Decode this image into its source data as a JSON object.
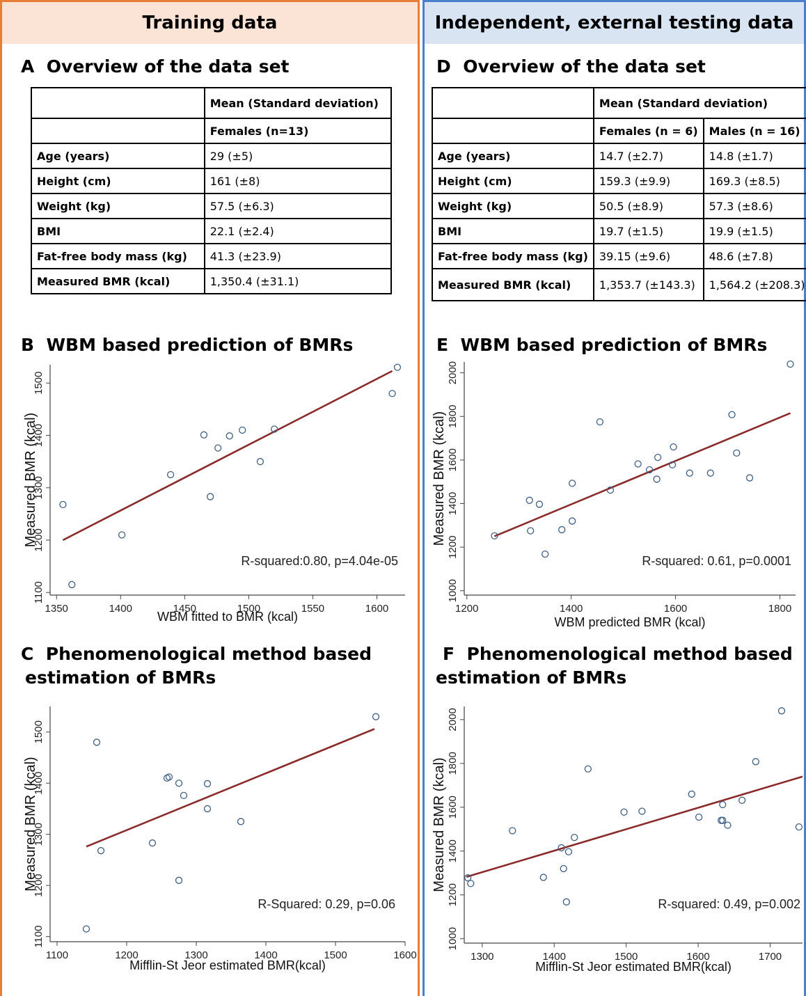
{
  "left": {
    "banner": "Training data",
    "sectionA": {
      "letter": "A",
      "title": "Overview of the data set"
    },
    "tableA": {
      "header": "Mean (Standard deviation)",
      "subheader": "Females (n=13)",
      "rows": [
        {
          "label": "Age (years)",
          "value": "29 (±5)"
        },
        {
          "label": "Height (cm)",
          "value": "161 (±8)"
        },
        {
          "label": "Weight (kg)",
          "value": "57.5 (±6.3)"
        },
        {
          "label": "BMI",
          "value": "22.1 (±2.4)"
        },
        {
          "label": "Fat-free body mass (kg)",
          "value": "41.3 (±23.9)"
        },
        {
          "label": "Measured BMR (kcal)",
          "value": "1,350.4 (±31.1)"
        }
      ]
    },
    "sectionB": {
      "letter": "B",
      "title": "WBM based prediction of BMRs"
    },
    "sectionC": {
      "letter": "C",
      "title_line1": "Phenomenological method based",
      "title_line2": "estimation of BMRs"
    }
  },
  "right": {
    "banner": "Independent, external testing data",
    "sectionD": {
      "letter": "D",
      "title": "Overview of the data set"
    },
    "tableD": {
      "header": "Mean (Standard deviation)",
      "col1": "Females (n = 6)",
      "col2": "Males (n = 16)",
      "rows": [
        {
          "label": "Age (years)",
          "female": "14.7 (±2.7)",
          "male": "14.8 (±1.7)"
        },
        {
          "label": "Height (cm)",
          "female": "159.3 (±9.9)",
          "male": "169.3 (±8.5)"
        },
        {
          "label": "Weight (kg)",
          "female": "50.5 (±8.9)",
          "male": "57.3 (±8.6)"
        },
        {
          "label": "BMI",
          "female": "19.7 (±1.5)",
          "male": "19.9 (±1.5)"
        },
        {
          "label": "Fat-free body mass (kg)",
          "female": "39.15 (±9.6)",
          "male": "48.6 (±7.8)"
        },
        {
          "label": "Measured BMR (kcal)",
          "female": "1,353.7 (±143.3)",
          "male": "1,564.2 (±208.3)"
        }
      ]
    },
    "sectionE": {
      "letter": "E",
      "title": "WBM based prediction of BMRs"
    },
    "sectionF": {
      "letter": "F",
      "title_line1": "Phenomenological method based",
      "title_line2": "estimation of BMRs"
    }
  },
  "colors": {
    "training_border": "#e67e33",
    "testing_border": "#4a7fd0",
    "training_banner": "#fbe3d5",
    "testing_banner": "#d9e4f3",
    "fit_line": "#8b2a2a",
    "marker": "#3f5f85"
  },
  "chart_data": [
    {
      "id": "B",
      "type": "scatter",
      "xlabel": "WBM fitted to BMR (kcal)",
      "ylabel": "Measured BMR (kcal)",
      "xlim": [
        1345,
        1622
      ],
      "ylim": [
        1095,
        1535
      ],
      "xticks": [
        1350,
        1400,
        1450,
        1500,
        1550,
        1600
      ],
      "yticks": [
        1100,
        1200,
        1300,
        1400,
        1500
      ],
      "x": [
        1355,
        1362,
        1401,
        1439,
        1465,
        1470,
        1476,
        1485,
        1495,
        1509,
        1520,
        1612,
        1616
      ],
      "y": [
        1268,
        1115,
        1210,
        1325,
        1401,
        1283,
        1376,
        1399,
        1410,
        1350,
        1412,
        1480,
        1530
      ],
      "fit": [
        [
          1355,
          1200
        ],
        [
          1612,
          1523
        ]
      ],
      "annotation": "R-squared:0.80, p=4.04e-05"
    },
    {
      "id": "E",
      "type": "scatter",
      "xlabel": "WBM predicted BMR (kcal)",
      "ylabel": "Measured BMR (kcal)",
      "xlim": [
        1195,
        1830
      ],
      "ylim": [
        980,
        2050
      ],
      "xticks": [
        1200,
        1400,
        1600,
        1800
      ],
      "yticks": [
        1000,
        1200,
        1400,
        1600,
        1800,
        2000
      ],
      "x": [
        1253,
        1320,
        1322,
        1339,
        1350,
        1382,
        1402,
        1402,
        1455,
        1475,
        1528,
        1550,
        1564,
        1566,
        1594,
        1596,
        1627,
        1667,
        1708,
        1717,
        1742,
        1820
      ],
      "y": [
        1252,
        1415,
        1275,
        1397,
        1168,
        1280,
        1493,
        1320,
        1775,
        1462,
        1582,
        1555,
        1512,
        1612,
        1578,
        1660,
        1540,
        1540,
        1808,
        1632,
        1518,
        2040
      ],
      "fit": [
        [
          1253,
          1250
        ],
        [
          1820,
          1815
        ]
      ],
      "annotation": "R-squared: 0.61, p=0.0001"
    },
    {
      "id": "C",
      "type": "scatter",
      "xlabel": "Mifflin-St Jeor estimated BMR(kcal)",
      "ylabel": "Measured BMR (kcal)",
      "xlim": [
        1090,
        1600
      ],
      "ylim": [
        1090,
        1550
      ],
      "xticks": [
        1100,
        1200,
        1300,
        1400,
        1500,
        1600
      ],
      "yticks": [
        1100,
        1200,
        1300,
        1400,
        1500
      ],
      "x": [
        1142,
        1157,
        1163,
        1237,
        1258,
        1261,
        1275,
        1275,
        1282,
        1316,
        1316,
        1364,
        1558
      ],
      "y": [
        1115,
        1480,
        1268,
        1283,
        1410,
        1412,
        1400,
        1210,
        1376,
        1350,
        1399,
        1325,
        1530
      ],
      "fit": [
        [
          1142,
          1276
        ],
        [
          1556,
          1506
        ]
      ],
      "annotation": "R-Squared: 0.29, p=0.06"
    },
    {
      "id": "F",
      "type": "scatter",
      "xlabel": "Mifflin-St Jeor estimated BMR(kcal)",
      "ylabel": "Measured BMR (kcal)",
      "xlim": [
        1275,
        1745
      ],
      "ylim": [
        980,
        2060
      ],
      "xticks": [
        1300,
        1400,
        1500,
        1600,
        1700
      ],
      "yticks": [
        1000,
        1200,
        1400,
        1600,
        1800,
        2000
      ],
      "x": [
        1280,
        1284,
        1342,
        1385,
        1410,
        1413,
        1417,
        1420,
        1428,
        1447,
        1497,
        1522,
        1591,
        1601,
        1632,
        1634,
        1634,
        1641,
        1661,
        1680,
        1716,
        1740
      ],
      "y": [
        1278,
        1252,
        1493,
        1280,
        1415,
        1320,
        1168,
        1397,
        1462,
        1775,
        1578,
        1582,
        1660,
        1555,
        1540,
        1612,
        1540,
        1518,
        1632,
        1808,
        2040,
        1510
      ],
      "fit": [
        [
          1278,
          1282
        ],
        [
          1745,
          1740
        ]
      ],
      "annotation": "R-squared: 0.49, p=0.002"
    }
  ]
}
